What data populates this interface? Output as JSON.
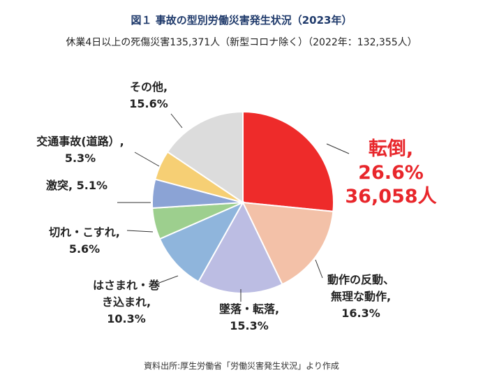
{
  "title": "図１ 事故の型別労働災害発生状況（2023年）",
  "subtitle": "休業4日以上の死傷災害135,371人（新型コロナ除く）（2022年：132,355人）",
  "source": "資料出所:厚生労働省「労働災害発生状況」より作成",
  "chart_data": {
    "type": "pie",
    "title": "図１ 事故の型別労働災害発生状況（2023年）",
    "subtitle": "休業4日以上の死傷災害135,371人（新型コロナ除く）（2022年：132,355人）",
    "start": "12 o'clock",
    "direction": "clockwise",
    "slices": [
      {
        "label": "転倒,",
        "value": 26.6,
        "pct_text": "26.6%",
        "count_text": "36,058人",
        "color": "#ee2b2a",
        "highlight": true
      },
      {
        "label": "動作の反動、無理な動作,",
        "value": 16.3,
        "pct_text": "16.3%",
        "color": "#f3c1a8"
      },
      {
        "label": "墜落・転落,",
        "value": 15.3,
        "pct_text": "15.3%",
        "color": "#bcbde3"
      },
      {
        "label": "はさまれ・巻き込まれ,",
        "value": 10.3,
        "pct_text": "10.3%",
        "color": "#8fb5dc"
      },
      {
        "label": "切れ・こすれ,",
        "value": 5.6,
        "pct_text": "5.6%",
        "color": "#9dcf8e"
      },
      {
        "label": "激突,",
        "value": 5.1,
        "pct_text": "5.1%",
        "color": "#8ba3d5"
      },
      {
        "label": "交通事故(道路）,",
        "value": 5.3,
        "pct_text": "5.3%",
        "color": "#f6cf74"
      },
      {
        "label": "その他,",
        "value": 15.6,
        "pct_text": "15.6%",
        "color": "#dcdcdc"
      }
    ]
  }
}
